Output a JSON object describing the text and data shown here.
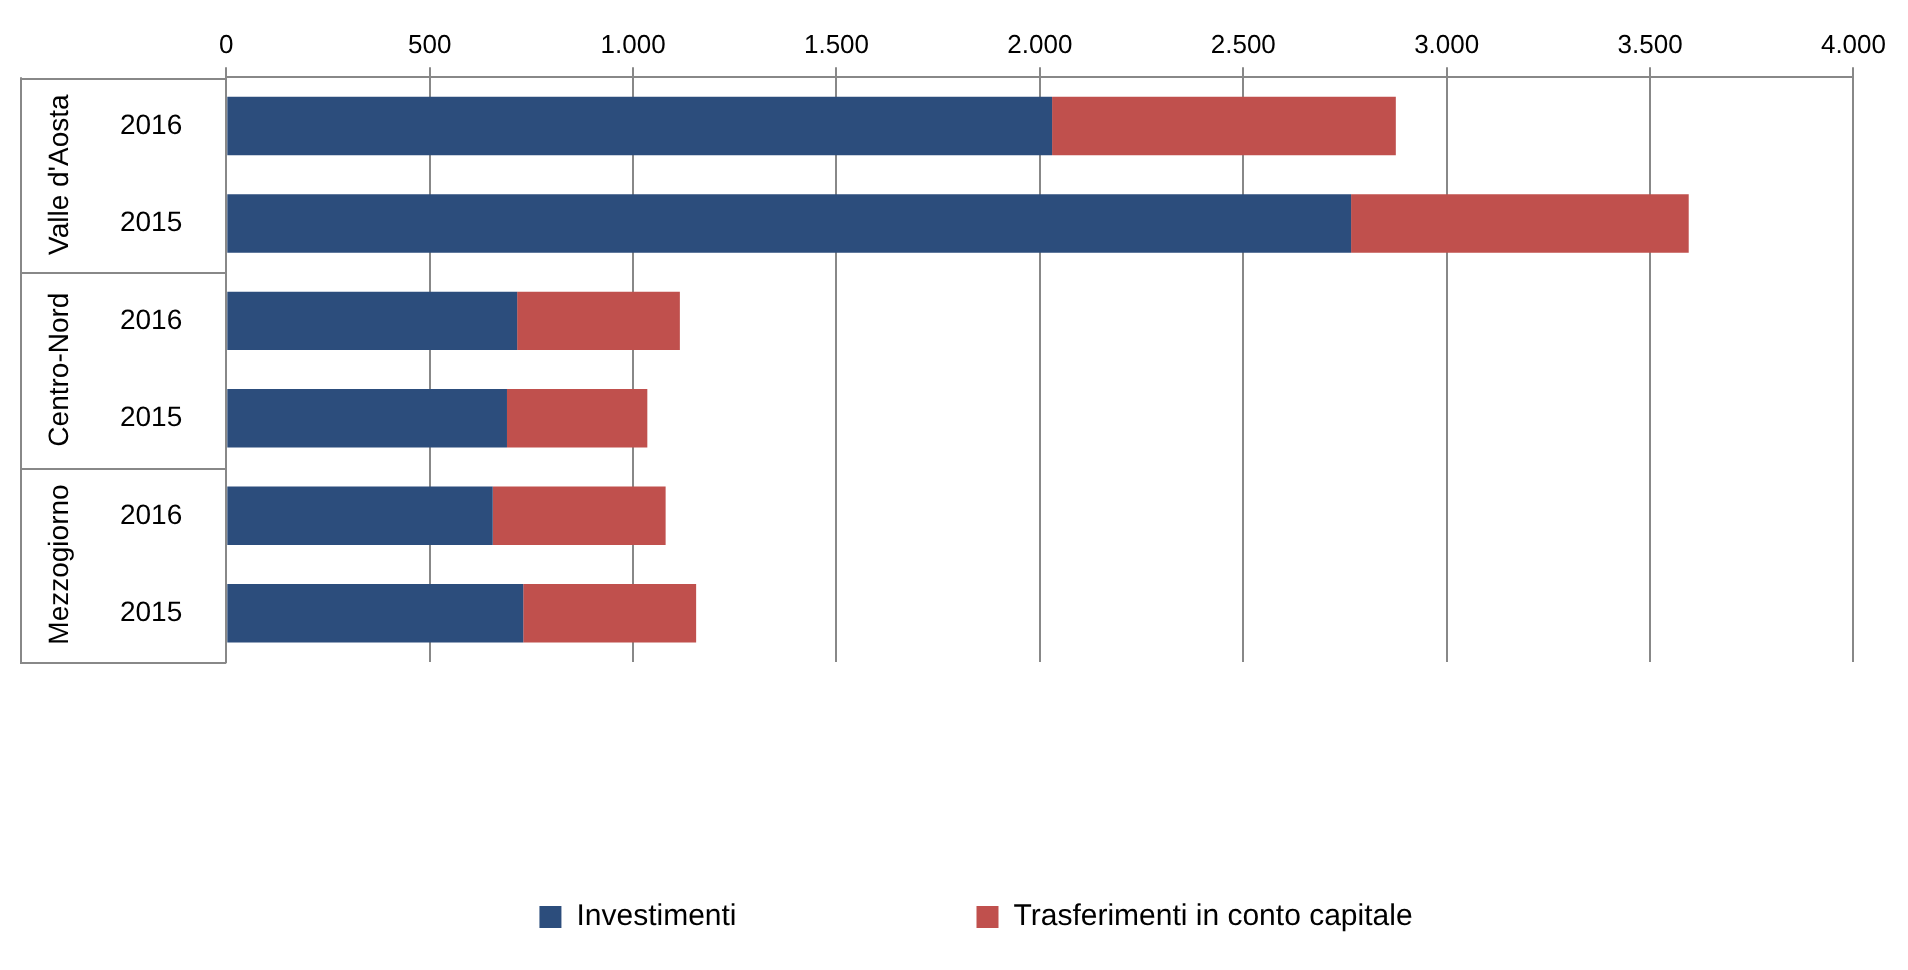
{
  "chart_data": {
    "type": "bar",
    "orientation": "horizontal",
    "stacked": true,
    "categories": [
      "2016",
      "2015",
      "2016",
      "2015",
      "2016",
      "2015"
    ],
    "annotations": [
      "Valle d'Aosta",
      "Centro-Nord",
      "Mezzogiorno"
    ],
    "series": [
      {
        "name": "Investimenti",
        "color": "#2c4d7c",
        "values": [
          2030,
          2765,
          715,
          690,
          655,
          730
        ]
      },
      {
        "name": "Trasferimenti in conto capitale",
        "color": "#c0504d",
        "values": [
          845,
          830,
          400,
          345,
          425,
          425
        ]
      }
    ],
    "xlim": [
      0,
      4000
    ],
    "xticks": [
      0,
      500,
      {
        "value": 1000,
        "label": "1.000"
      },
      {
        "value": 1500,
        "label": "1.500"
      },
      {
        "value": 2000,
        "label": "2.000"
      },
      {
        "value": 2500,
        "label": "2.500"
      },
      {
        "value": 3000,
        "label": "3.000"
      },
      {
        "value": 3500,
        "label": "3.500"
      },
      {
        "value": 4000,
        "label": "4.000"
      }
    ],
    "grid": "x",
    "legend": "bottom"
  }
}
